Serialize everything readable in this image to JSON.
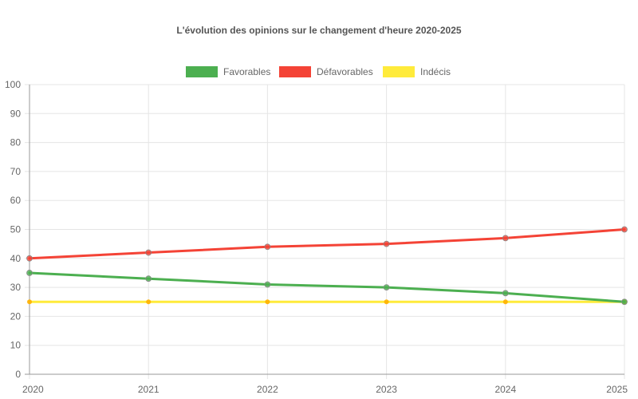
{
  "chart_data": {
    "type": "line",
    "title": "L'évolution des opinions sur le changement d'heure 2020-2025",
    "xlabel": "",
    "ylabel": "",
    "categories": [
      "2020",
      "2021",
      "2022",
      "2023",
      "2024",
      "2025"
    ],
    "ylim": [
      0,
      100
    ],
    "yticks": [
      0,
      10,
      20,
      30,
      40,
      50,
      60,
      70,
      80,
      90,
      100
    ],
    "grid": true,
    "legend_position": "top",
    "series": [
      {
        "name": "Favorables",
        "values": [
          35,
          33,
          31,
          30,
          28,
          25
        ],
        "color": "#4caf50"
      },
      {
        "name": "Défavorables",
        "values": [
          40,
          42,
          44,
          45,
          47,
          50
        ],
        "color": "#f44336"
      },
      {
        "name": "Indécis",
        "values": [
          25,
          25,
          25,
          25,
          25,
          25
        ],
        "color": "#ffeb3b"
      }
    ]
  }
}
